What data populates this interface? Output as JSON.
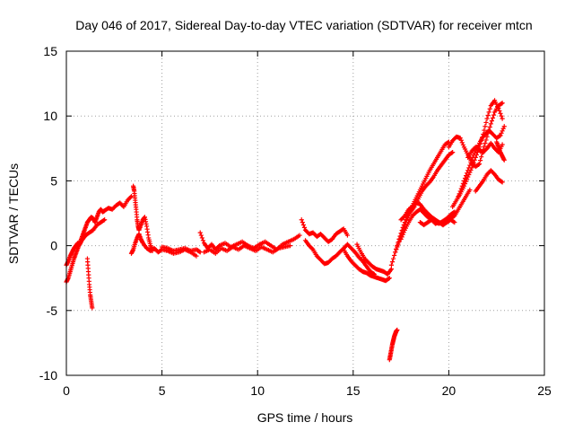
{
  "chart_data": {
    "type": "scatter",
    "title": "Day 046 of 2017, Sidereal Day-to-day VTEC variation (SDTVAR) for receiver mtcn",
    "xlabel": "GPS time / hours",
    "ylabel": "SDTVAR / TECUs",
    "xlim": [
      0,
      25
    ],
    "ylim": [
      -10,
      15
    ],
    "xticks": [
      "0",
      "5",
      "10",
      "15",
      "20",
      "25"
    ],
    "yticks": [
      "-10",
      "-5",
      "0",
      "5",
      "10",
      "15"
    ],
    "xtick_values": [
      0,
      5,
      10,
      15,
      20,
      25
    ],
    "ytick_values": [
      -10,
      -5,
      0,
      5,
      10,
      15
    ],
    "grid": true,
    "marker": "+",
    "series_color": "#ff0000",
    "series": [
      {
        "name": "SDTVAR",
        "segments": [
          {
            "x": [
              0.0,
              0.1,
              0.2,
              0.3,
              0.4,
              0.5,
              0.6,
              0.7,
              0.8,
              0.9,
              1.0,
              1.1,
              1.2,
              1.3,
              1.4,
              1.5,
              1.6,
              1.7,
              1.8,
              1.9,
              2.0,
              2.2,
              2.4,
              2.6,
              2.8,
              3.0,
              3.2,
              3.4
            ],
            "y": [
              -2.8,
              -2.5,
              -2.0,
              -1.5,
              -1.0,
              -0.6,
              -0.2,
              0.2,
              0.6,
              1.0,
              1.4,
              1.8,
              2.0,
              2.2,
              2.1,
              1.8,
              2.2,
              2.6,
              2.8,
              2.6,
              2.7,
              2.9,
              2.8,
              3.1,
              3.3,
              3.0,
              3.5,
              3.8
            ]
          },
          {
            "x": [
              0.0,
              0.1,
              0.2,
              0.3,
              0.4,
              0.5,
              0.6,
              0.7,
              0.8,
              0.9,
              1.0,
              1.2,
              1.4,
              1.6,
              1.8,
              2.0
            ],
            "y": [
              -1.5,
              -1.2,
              -0.8,
              -0.5,
              -0.2,
              0.0,
              0.2,
              0.1,
              0.4,
              0.6,
              0.8,
              1.0,
              1.2,
              1.6,
              1.8,
              2.0
            ]
          },
          {
            "x": [
              1.1,
              1.15,
              1.2,
              1.25,
              1.3,
              1.35
            ],
            "y": [
              -1.0,
              -2.0,
              -3.0,
              -3.8,
              -4.3,
              -4.8
            ]
          },
          {
            "x": [
              3.5,
              3.55,
              3.6,
              3.65,
              3.7,
              3.75,
              3.8,
              3.9,
              4.0,
              4.1,
              4.2,
              4.3,
              4.4,
              4.5
            ],
            "y": [
              4.6,
              4.2,
              3.5,
              2.8,
              2.0,
              1.5,
              1.2,
              1.6,
              2.0,
              2.2,
              1.5,
              0.6,
              0.0,
              -0.4
            ]
          },
          {
            "x": [
              3.4,
              3.5,
              3.6,
              3.7,
              3.8,
              3.9,
              4.0,
              4.2,
              4.4,
              4.6,
              4.8,
              5.0,
              5.3,
              5.6,
              5.9,
              6.2,
              6.5,
              6.8
            ],
            "y": [
              -0.6,
              -0.3,
              0.2,
              0.6,
              0.9,
              0.5,
              0.2,
              -0.2,
              -0.4,
              -0.2,
              -0.5,
              -0.3,
              -0.4,
              -0.6,
              -0.5,
              -0.3,
              -0.5,
              -0.8
            ]
          },
          {
            "x": [
              5.0,
              5.3,
              5.6,
              5.9,
              6.2,
              6.5,
              6.8,
              7.0
            ],
            "y": [
              -0.1,
              -0.2,
              -0.4,
              -0.3,
              -0.2,
              -0.4,
              -0.3,
              -0.5
            ]
          },
          {
            "x": [
              7.0,
              7.2,
              7.4,
              7.6,
              7.8,
              8.0,
              8.3,
              8.6,
              8.9,
              9.2,
              9.5,
              9.8,
              10.1,
              10.4,
              10.7,
              11.0,
              11.3,
              11.6,
              11.9,
              12.2
            ],
            "y": [
              1.0,
              0.2,
              -0.2,
              0.1,
              -0.3,
              0.0,
              0.2,
              -0.1,
              0.1,
              0.3,
              0.0,
              -0.2,
              0.1,
              0.3,
              0.0,
              -0.3,
              0.1,
              0.3,
              0.5,
              0.8
            ]
          },
          {
            "x": [
              7.2,
              7.5,
              7.8,
              8.1,
              8.4,
              8.7,
              9.0,
              9.3,
              9.6,
              9.9,
              10.2,
              10.5,
              10.8,
              11.1,
              11.4,
              11.7
            ],
            "y": [
              -0.5,
              -0.3,
              -0.6,
              -0.2,
              -0.4,
              -0.1,
              -0.3,
              0.0,
              -0.2,
              -0.4,
              -0.1,
              -0.3,
              -0.5,
              -0.2,
              -0.1,
              0.0
            ]
          },
          {
            "x": [
              12.3,
              12.5,
              12.7,
              12.9,
              13.1,
              13.3,
              13.5,
              13.7,
              13.9,
              14.1,
              14.3,
              14.5,
              14.7
            ],
            "y": [
              2.0,
              1.2,
              0.9,
              1.0,
              0.7,
              0.9,
              0.6,
              0.3,
              0.5,
              0.9,
              1.1,
              1.3,
              0.8
            ]
          },
          {
            "x": [
              12.5,
              12.7,
              12.9,
              13.1,
              13.3,
              13.5,
              13.7,
              13.9,
              14.1,
              14.3,
              14.5,
              14.7,
              14.9,
              15.1,
              15.3,
              15.5,
              15.7,
              15.9,
              16.1
            ],
            "y": [
              0.4,
              0.0,
              -0.3,
              -0.8,
              -1.1,
              -1.4,
              -1.3,
              -1.0,
              -0.8,
              -0.5,
              -0.2,
              0.1,
              -0.2,
              -0.5,
              -0.9,
              -1.2,
              -1.6,
              -2.0,
              -2.2
            ]
          },
          {
            "x": [
              14.5,
              14.7,
              14.9,
              15.1,
              15.3,
              15.5,
              15.7,
              15.9,
              16.1,
              16.3,
              16.5,
              16.7,
              16.9
            ],
            "y": [
              -0.3,
              -0.8,
              -1.2,
              -1.5,
              -1.8,
              -2.0,
              -2.1,
              -2.3,
              -2.4,
              -2.5,
              -2.6,
              -2.7,
              -2.5
            ]
          },
          {
            "x": [
              15.2,
              15.4,
              15.6,
              15.8,
              16.0,
              16.2,
              16.4,
              16.6,
              16.8,
              17.0
            ],
            "y": [
              0.1,
              -0.5,
              -1.0,
              -1.3,
              -1.6,
              -1.8,
              -1.9,
              -2.0,
              -2.2,
              -1.8
            ]
          },
          {
            "x": [
              16.9,
              16.95,
              17.0,
              17.05,
              17.1,
              17.15,
              17.2,
              17.25,
              17.3
            ],
            "y": [
              -8.8,
              -8.4,
              -8.0,
              -7.6,
              -7.3,
              -7.0,
              -6.8,
              -6.6,
              -6.5
            ]
          },
          {
            "x": [
              17.0,
              17.2,
              17.4,
              17.6,
              17.8,
              18.0,
              18.2,
              18.4,
              18.6,
              18.8,
              19.0,
              19.2,
              19.4,
              19.6,
              19.8,
              20.0
            ],
            "y": [
              -1.5,
              -0.5,
              0.5,
              1.4,
              2.2,
              2.8,
              3.4,
              4.0,
              4.6,
              5.2,
              5.8,
              6.3,
              6.8,
              7.3,
              7.8,
              8.0
            ]
          },
          {
            "x": [
              17.2,
              17.4,
              17.6,
              17.8,
              18.0,
              18.2,
              18.4,
              18.6,
              18.8,
              19.0,
              19.2,
              19.4,
              19.6,
              19.8,
              20.0,
              20.2
            ],
            "y": [
              -0.5,
              0.3,
              1.2,
              2.0,
              2.6,
              3.0,
              3.6,
              4.2,
              4.6,
              4.9,
              5.3,
              5.8,
              6.2,
              6.6,
              7.0,
              7.2
            ]
          },
          {
            "x": [
              17.5,
              17.7,
              17.9,
              18.1,
              18.3,
              18.5,
              18.7,
              18.9,
              19.1,
              19.3,
              19.5,
              19.7,
              19.9,
              20.1,
              20.3
            ],
            "y": [
              0.5,
              1.2,
              1.8,
              2.3,
              2.6,
              2.8,
              2.5,
              2.2,
              2.0,
              1.8,
              1.7,
              1.9,
              2.1,
              2.4,
              2.6
            ]
          },
          {
            "x": [
              17.5,
              17.7,
              17.9,
              18.1,
              18.3,
              18.5,
              18.7,
              18.9,
              19.1,
              19.3,
              19.5,
              19.7,
              19.9,
              20.1,
              20.3
            ],
            "y": [
              2.0,
              2.3,
              2.8,
              3.0,
              3.3,
              3.2,
              2.8,
              2.5,
              2.2,
              2.0,
              1.8,
              1.6,
              1.8,
              2.0,
              1.8
            ]
          },
          {
            "x": [
              18.5,
              18.7,
              18.9,
              19.1,
              19.3,
              19.5,
              19.7,
              19.9,
              20.1,
              20.3,
              20.5,
              20.7,
              20.9,
              21.1
            ],
            "y": [
              1.8,
              1.6,
              1.8,
              2.0,
              1.7,
              1.8,
              1.6,
              2.0,
              2.1,
              2.3,
              2.8,
              3.3,
              3.8,
              4.3
            ]
          },
          {
            "x": [
              20.0,
              20.2,
              20.4,
              20.6,
              20.8,
              21.0,
              21.2,
              21.4,
              21.6,
              21.8,
              22.0,
              22.2,
              22.4,
              22.6,
              22.8
            ],
            "y": [
              7.6,
              8.1,
              8.4,
              8.3,
              7.6,
              7.0,
              6.4,
              6.1,
              6.3,
              7.4,
              8.4,
              9.4,
              10.3,
              10.8,
              11.0
            ]
          },
          {
            "x": [
              20.2,
              20.4,
              20.6,
              20.8,
              21.0,
              21.2,
              21.4,
              21.6,
              21.8,
              22.0,
              22.2,
              22.4,
              22.6,
              22.8
            ],
            "y": [
              3.0,
              3.5,
              4.0,
              4.6,
              5.3,
              6.0,
              6.8,
              7.6,
              8.6,
              9.8,
              10.8,
              11.2,
              10.6,
              9.8
            ]
          },
          {
            "x": [
              20.5,
              20.7,
              20.9,
              21.1,
              21.3,
              21.5,
              21.7,
              21.9,
              22.1,
              22.3,
              22.5,
              22.7,
              22.9
            ],
            "y": [
              3.8,
              4.6,
              5.4,
              6.2,
              7.0,
              7.6,
              8.2,
              8.6,
              8.9,
              8.6,
              8.3,
              8.5,
              9.2
            ]
          },
          {
            "x": [
              21.0,
              21.2,
              21.4,
              21.6,
              21.8,
              22.0,
              22.2,
              22.4,
              22.6,
              22.8
            ],
            "y": [
              6.8,
              7.3,
              7.6,
              7.4,
              7.2,
              7.5,
              7.9,
              7.5,
              7.2,
              7.8
            ]
          },
          {
            "x": [
              21.4,
              21.6,
              21.8,
              22.0,
              22.2,
              22.4,
              22.6,
              22.8
            ],
            "y": [
              4.2,
              4.6,
              5.0,
              5.5,
              5.8,
              5.5,
              5.1,
              4.9
            ]
          },
          {
            "x": [
              22.5,
              22.6,
              22.7,
              22.8,
              22.9
            ],
            "y": [
              8.0,
              7.6,
              7.2,
              6.9,
              6.6
            ]
          }
        ]
      }
    ]
  }
}
